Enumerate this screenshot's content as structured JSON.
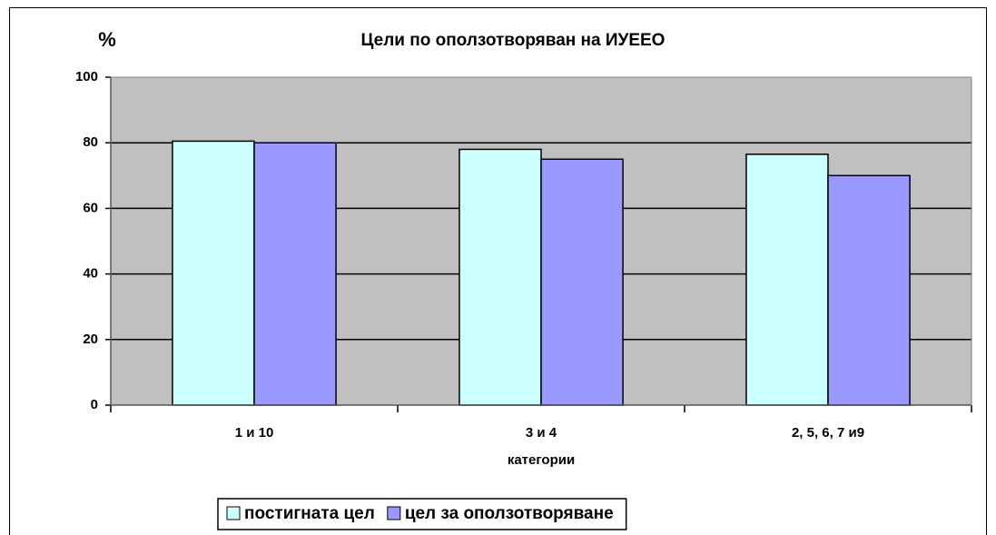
{
  "chart_data": {
    "type": "bar",
    "title": "Цели по оползотворяван на ИУЕЕО",
    "y_label": "%",
    "x_label": "категории",
    "categories": [
      "1 и 10",
      "3 и 4",
      "2, 5, 6, 7 и9"
    ],
    "series": [
      {
        "name": "постигната цел",
        "color": "#ccffff",
        "values": [
          80.5,
          78,
          76.5
        ]
      },
      {
        "name": "цел за оползотворяване",
        "color": "#9999ff",
        "values": [
          80,
          75,
          70
        ]
      }
    ],
    "ylim": [
      0,
      100
    ],
    "yticks": [
      0,
      20,
      40,
      60,
      80,
      100
    ],
    "grid": true,
    "legend": "bottom"
  }
}
